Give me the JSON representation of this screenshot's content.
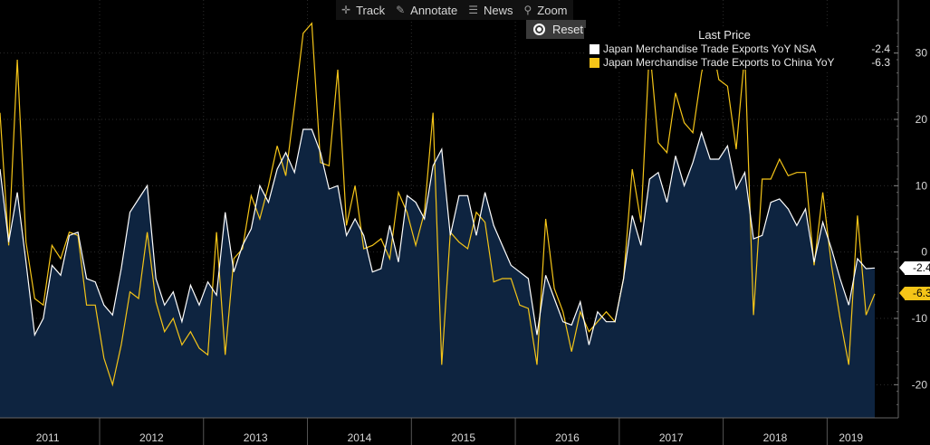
{
  "toolbar": {
    "track": "Track",
    "annotate": "Annotate",
    "news": "News",
    "zoom": "Zoom",
    "reset": "Reset"
  },
  "legend": {
    "header": "Last Price",
    "items": [
      {
        "name": "Japan Merchandise Trade Exports YoY NSA",
        "value": "-2.4",
        "color": "#ffffff"
      },
      {
        "name": "Japan Merchandise Trade Exports to China YoY",
        "value": "-6.3",
        "color": "#f5c518"
      }
    ]
  },
  "tags": {
    "white": "-2.4",
    "yellow": "-6.3"
  },
  "chart_data": {
    "type": "line",
    "ylim": [
      -25,
      38
    ],
    "y_ticks": [
      30,
      20,
      10,
      0,
      -10,
      -20
    ],
    "year_labels": [
      "2011",
      "2012",
      "2013",
      "2014",
      "2015",
      "2016",
      "2017",
      "2018",
      "2019"
    ],
    "series": [
      {
        "name": "Japan Merchandise Trade Exports YoY NSA",
        "color": "#ffffff",
        "fill": "#0e2440",
        "values": [
          12.5,
          1.5,
          9.0,
          -1.5,
          -12.5,
          -10.0,
          -2.0,
          -3.5,
          2.5,
          3.0,
          -4.0,
          -4.5,
          -8.0,
          -9.5,
          -2.5,
          6.0,
          8.0,
          10.0,
          -4.0,
          -8.0,
          -6.0,
          -10.5,
          -5.0,
          -8.0,
          -4.5,
          -6.5,
          6.0,
          -3.0,
          1.0,
          3.5,
          10.0,
          7.5,
          12.5,
          15.0,
          12.0,
          18.5,
          18.5,
          15.0,
          9.5,
          10.0,
          2.5,
          5.0,
          2.5,
          -3.0,
          -2.5,
          4.0,
          -1.5,
          8.5,
          7.5,
          5.0,
          13.0,
          15.5,
          2.5,
          8.5,
          8.5,
          2.5,
          9.0,
          4.0,
          1.0,
          -2.0,
          -3.0,
          -4.0,
          -12.5,
          -3.5,
          -7.0,
          -10.5,
          -11.0,
          -7.5,
          -14.0,
          -9.0,
          -10.5,
          -10.5,
          -4.0,
          5.5,
          1.0,
          11.0,
          12.0,
          7.5,
          14.5,
          10.0,
          13.5,
          18.0,
          14.0,
          14.0,
          16.0,
          9.5,
          12.0,
          2.0,
          2.5,
          7.5,
          8.0,
          6.5,
          4.0,
          6.5,
          -1.5,
          4.5,
          0.5,
          -4.0,
          -8.0,
          -1.0,
          -2.5,
          -2.4
        ]
      },
      {
        "name": "Japan Merchandise Trade Exports to China YoY",
        "color": "#f5c518",
        "values": [
          21.0,
          1.0,
          29.0,
          1.5,
          -7.0,
          -8.0,
          1.0,
          -1.0,
          3.0,
          2.5,
          -8.0,
          -8.0,
          -16.0,
          -20.0,
          -14.0,
          -6.0,
          -7.0,
          3.0,
          -7.5,
          -12.0,
          -10.0,
          -14.0,
          -12.0,
          -14.5,
          -15.5,
          3.0,
          -15.5,
          -1.0,
          0.5,
          8.5,
          5.0,
          10.0,
          16.0,
          11.5,
          22.0,
          33.0,
          34.5,
          13.5,
          13.0,
          27.5,
          4.0,
          10.0,
          0.5,
          1.0,
          2.0,
          -1.0,
          9.0,
          6.0,
          1.0,
          6.0,
          21.0,
          -17.0,
          3.0,
          1.5,
          0.5,
          6.0,
          4.5,
          -4.5,
          -4.0,
          -4.0,
          -8.0,
          -8.5,
          -17.0,
          5.0,
          -5.5,
          -9.0,
          -15.0,
          -9.0,
          -12.0,
          -10.5,
          -9.0,
          -10.5,
          -4.0,
          12.5,
          4.5,
          31.0,
          16.5,
          15.0,
          24.0,
          19.5,
          18.0,
          27.0,
          33.0,
          26.0,
          25.0,
          15.5,
          30.0,
          -9.5,
          11.0,
          11.0,
          14.0,
          11.5,
          12.0,
          12.0,
          -2.0,
          9.0,
          -2.0,
          -10.0,
          -17.0,
          5.5,
          -9.5,
          -6.3
        ]
      }
    ]
  }
}
